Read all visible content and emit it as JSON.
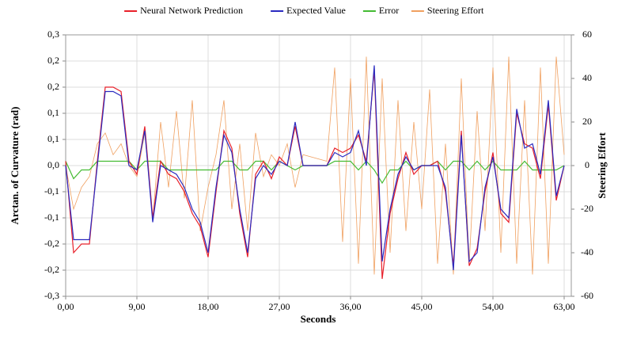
{
  "chart_data": {
    "type": "line",
    "xlabel": "Seconds",
    "ylabel": "Arctan. of Curvature (rad)",
    "y2label": "Steering Effort",
    "x": [
      0,
      1,
      2,
      3,
      4,
      5,
      6,
      7,
      8,
      9,
      10,
      11,
      12,
      13,
      14,
      15,
      16,
      17,
      18,
      19,
      20,
      21,
      22,
      23,
      24,
      25,
      26,
      27,
      28,
      29,
      30,
      31,
      32,
      33,
      34,
      35,
      36,
      37,
      38,
      39,
      40,
      41,
      42,
      43,
      44,
      45,
      46,
      47,
      48,
      49,
      50,
      51,
      52,
      53,
      54,
      55,
      56,
      57,
      58,
      59,
      60,
      61,
      62,
      63
    ],
    "series": [
      {
        "name": "Neural Network Prediction",
        "color": "#e8202a",
        "values": [
          0.01,
          -0.2,
          -0.18,
          -0.18,
          0.01,
          0.18,
          0.18,
          0.17,
          0.01,
          -0.02,
          0.09,
          -0.12,
          0.01,
          -0.02,
          -0.03,
          -0.06,
          -0.11,
          -0.14,
          -0.21,
          -0.06,
          0.08,
          0.04,
          -0.11,
          -0.21,
          -0.02,
          0.01,
          -0.03,
          0.02,
          0,
          0.09,
          0,
          0,
          0,
          0,
          0.04,
          0.03,
          0.04,
          0.07,
          0.01,
          0.22,
          -0.26,
          -0.11,
          -0.03,
          0.03,
          -0.02,
          0,
          0,
          0.01,
          -0.06,
          -0.23,
          0.08,
          -0.23,
          -0.19,
          -0.06,
          0.03,
          -0.11,
          -0.13,
          0.12,
          0.05,
          0.04,
          -0.03,
          0.14,
          -0.08,
          0
        ]
      },
      {
        "name": "Expected Value",
        "color": "#2a2ac0",
        "values": [
          0,
          -0.17,
          -0.17,
          -0.17,
          0,
          0.17,
          0.17,
          0.16,
          0,
          -0.01,
          0.08,
          -0.13,
          0,
          -0.01,
          -0.02,
          -0.05,
          -0.1,
          -0.13,
          -0.2,
          -0.05,
          0.07,
          0.03,
          -0.1,
          -0.2,
          -0.03,
          0,
          -0.02,
          0.01,
          0,
          0.1,
          0,
          0,
          0,
          0,
          0.03,
          0.02,
          0.03,
          0.08,
          0,
          0.23,
          -0.22,
          -0.1,
          -0.02,
          0.02,
          -0.01,
          0,
          0,
          0,
          -0.05,
          -0.24,
          0.07,
          -0.22,
          -0.2,
          -0.05,
          0.02,
          -0.1,
          -0.12,
          0.13,
          0.04,
          0.05,
          -0.02,
          0.15,
          -0.07,
          0
        ]
      },
      {
        "name": "Error",
        "color": "#44bb33",
        "values": [
          0.01,
          -0.03,
          -0.01,
          -0.01,
          0.01,
          0.01,
          0.01,
          0.01,
          0.01,
          -0.01,
          0.01,
          0.01,
          0.01,
          -0.01,
          -0.01,
          -0.01,
          -0.01,
          -0.01,
          -0.01,
          -0.01,
          0.01,
          0.01,
          -0.01,
          -0.01,
          0.01,
          0.01,
          -0.01,
          0.01,
          0,
          -0.01,
          0,
          0,
          0,
          0,
          0.01,
          0.01,
          0.01,
          -0.01,
          0.01,
          -0.01,
          -0.04,
          -0.01,
          -0.01,
          0.01,
          -0.01,
          0,
          0,
          0.01,
          -0.01,
          0.01,
          0.01,
          -0.01,
          0.01,
          -0.01,
          0.01,
          -0.01,
          -0.01,
          -0.01,
          0.01,
          -0.01,
          -0.01,
          -0.01,
          -0.01,
          0
        ]
      },
      {
        "name": "Steering Effort",
        "color": "#f0a060",
        "axis": "y2",
        "values": [
          0,
          -20,
          -10,
          -5,
          10,
          15,
          5,
          10,
          0,
          -5,
          15,
          -25,
          20,
          -10,
          25,
          -15,
          30,
          -30,
          -10,
          5,
          30,
          -20,
          10,
          -30,
          15,
          -5,
          5,
          0,
          10,
          -10,
          5,
          4,
          3,
          2,
          45,
          -35,
          40,
          -45,
          50,
          -50,
          40,
          -40,
          30,
          -30,
          20,
          -20,
          35,
          -45,
          10,
          -50,
          40,
          -45,
          25,
          -30,
          45,
          -40,
          50,
          -45,
          30,
          -50,
          45,
          -45,
          50,
          5
        ]
      }
    ],
    "xlim": [
      0,
      63.9
    ],
    "xticks": [
      {
        "value": 0,
        "label": "0,00"
      },
      {
        "value": 9,
        "label": "9,00"
      },
      {
        "value": 18,
        "label": "18,00"
      },
      {
        "value": 27,
        "label": "27,00"
      },
      {
        "value": 36,
        "label": "36,00"
      },
      {
        "value": 45,
        "label": "45,00"
      },
      {
        "value": 54,
        "label": "54,00"
      },
      {
        "value": 63,
        "label": "63,00"
      }
    ],
    "ylim": [
      -0.3,
      0.3
    ],
    "yticks": [
      {
        "value": 0.3,
        "label": "0,3"
      },
      {
        "value": 0.24,
        "label": "0,2"
      },
      {
        "value": 0.18,
        "label": "0,2"
      },
      {
        "value": 0.12,
        "label": "0,1"
      },
      {
        "value": 0.06,
        "label": "0,1"
      },
      {
        "value": 0,
        "label": "0,0"
      },
      {
        "value": -0.06,
        "label": "-0,1"
      },
      {
        "value": -0.12,
        "label": "-0,1"
      },
      {
        "value": -0.18,
        "label": "-0,2"
      },
      {
        "value": -0.24,
        "label": "-0,2"
      },
      {
        "value": -0.3,
        "label": "-0,3"
      }
    ],
    "y2lim": [
      -60,
      60
    ],
    "y2ticks": [
      60,
      40,
      20,
      0,
      -20,
      -40,
      -60
    ],
    "grid": true,
    "legend": "top"
  }
}
